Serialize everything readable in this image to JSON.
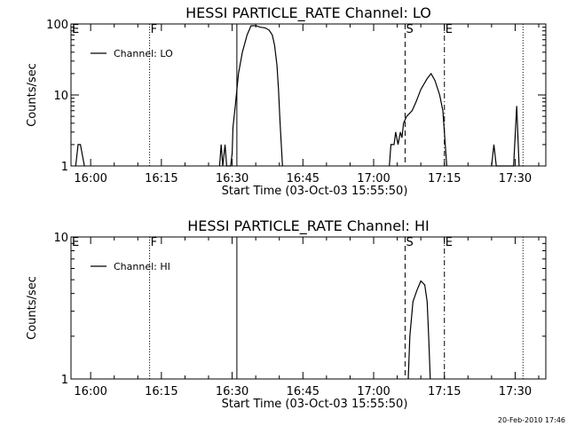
{
  "chart_data": [
    {
      "type": "line",
      "title": "HESSI PARTICLE_RATE Channel: LO",
      "xlabel": "Start Time (03-Oct-03 15:55:50)",
      "ylabel": "Counts/sec",
      "xlim": [
        "15:55:50",
        "17:36:30"
      ],
      "ylim": [
        1,
        100
      ],
      "yscale": "log",
      "x_tick_labels": [
        "16:00",
        "16:15",
        "16:30",
        "16:45",
        "17:00",
        "17:15",
        "17:30"
      ],
      "y_tick_labels": [
        "1",
        "10",
        "100"
      ],
      "legend": {
        "placement": "top-left",
        "entries": [
          "Channel: LO"
        ]
      },
      "series": [
        {
          "name": "Channel: LO",
          "points": [
            [
              "15:56:50",
              1
            ],
            [
              "15:57:20",
              2
            ],
            [
              "15:57:50",
              2
            ],
            [
              "15:58:40",
              1
            ],
            [
              "16:27:20",
              1
            ],
            [
              "16:27:40",
              2
            ],
            [
              "16:28:00",
              1
            ],
            [
              "16:28:30",
              2
            ],
            [
              "16:28:50",
              1
            ],
            [
              "16:29:40",
              1
            ],
            [
              "16:30:00",
              1.5
            ],
            [
              "16:30:10",
              3.5
            ],
            [
              "16:30:40",
              7
            ],
            [
              "16:31:20",
              20
            ],
            [
              "16:32:10",
              40
            ],
            [
              "16:33:10",
              70
            ],
            [
              "16:34:00",
              94
            ],
            [
              "16:35:00",
              95
            ],
            [
              "16:36:00",
              90
            ],
            [
              "16:37:00",
              88
            ],
            [
              "16:37:50",
              82
            ],
            [
              "16:38:30",
              70
            ],
            [
              "16:39:00",
              50
            ],
            [
              "16:39:30",
              26
            ],
            [
              "16:39:50",
              12
            ],
            [
              "16:40:10",
              4
            ],
            [
              "16:40:40",
              1
            ],
            [
              "17:03:20",
              1
            ],
            [
              "17:03:40",
              2
            ],
            [
              "17:04:20",
              2
            ],
            [
              "17:04:40",
              3
            ],
            [
              "17:05:10",
              2
            ],
            [
              "17:05:40",
              3
            ],
            [
              "17:06:00",
              2.5
            ],
            [
              "17:06:20",
              4
            ],
            [
              "17:07:00",
              5
            ],
            [
              "17:08:10",
              6
            ],
            [
              "17:09:00",
              8
            ],
            [
              "17:10:00",
              12
            ],
            [
              "17:11:20",
              17
            ],
            [
              "17:12:10",
              20
            ],
            [
              "17:13:00",
              16
            ],
            [
              "17:14:00",
              10
            ],
            [
              "17:14:40",
              6
            ],
            [
              "17:15:00",
              3
            ],
            [
              "17:15:30",
              1
            ],
            [
              "17:25:00",
              1
            ],
            [
              "17:25:30",
              2
            ],
            [
              "17:26:00",
              1
            ],
            [
              "17:29:40",
              1
            ],
            [
              "17:30:20",
              7
            ],
            [
              "17:30:50",
              1
            ]
          ]
        }
      ],
      "vertical_markers": [
        {
          "label": "E",
          "time": "15:55:50",
          "style": "dash-dot"
        },
        {
          "label": "F",
          "time": "16:12:30",
          "style": "dotted"
        },
        {
          "label": "",
          "time": "16:31:00",
          "style": "solid"
        },
        {
          "label": "S",
          "time": "17:06:40",
          "style": "dashed"
        },
        {
          "label": "E",
          "time": "17:15:00",
          "style": "dash-dot"
        },
        {
          "label": "",
          "time": "17:31:40",
          "style": "dotted"
        }
      ]
    },
    {
      "type": "line",
      "title": "HESSI PARTICLE_RATE Channel: HI",
      "xlabel": "Start Time (03-Oct-03 15:55:50)",
      "ylabel": "Counts/sec",
      "xlim": [
        "15:55:50",
        "17:36:30"
      ],
      "ylim": [
        1,
        10
      ],
      "yscale": "log",
      "x_tick_labels": [
        "16:00",
        "16:15",
        "16:30",
        "16:45",
        "17:00",
        "17:15",
        "17:30"
      ],
      "y_tick_labels": [
        "1",
        "10"
      ],
      "legend": {
        "placement": "top-left",
        "entries": [
          "Channel: HI"
        ]
      },
      "series": [
        {
          "name": "Channel: HI",
          "points": [
            [
              "17:07:20",
              1
            ],
            [
              "17:07:40",
              2
            ],
            [
              "17:08:20",
              3.5
            ],
            [
              "17:09:10",
              4.2
            ],
            [
              "17:10:00",
              4.9
            ],
            [
              "17:10:50",
              4.6
            ],
            [
              "17:11:20",
              3.5
            ],
            [
              "17:11:40",
              2
            ],
            [
              "17:12:00",
              1
            ]
          ]
        }
      ],
      "vertical_markers": [
        {
          "label": "E",
          "time": "15:55:50",
          "style": "dash-dot"
        },
        {
          "label": "F",
          "time": "16:12:30",
          "style": "dotted"
        },
        {
          "label": "",
          "time": "16:31:00",
          "style": "solid"
        },
        {
          "label": "S",
          "time": "17:06:40",
          "style": "dashed"
        },
        {
          "label": "E",
          "time": "17:15:00",
          "style": "dash-dot"
        },
        {
          "label": "",
          "time": "17:31:40",
          "style": "dotted"
        }
      ]
    }
  ],
  "footer": {
    "stamp": "20-Feb-2010 17:46"
  }
}
